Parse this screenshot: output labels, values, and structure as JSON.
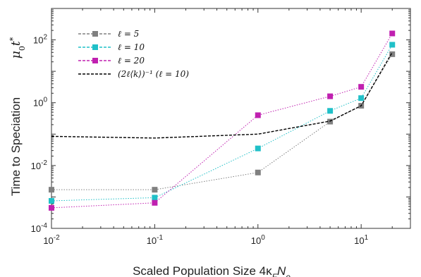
{
  "chart_data": {
    "type": "line",
    "title": "",
    "xlabel": "Scaled Population Size 4κ",
    "xlabel_sub_F": "F",
    "xlabel_N": "N",
    "xlabel_sub_e": "e",
    "ylabel": "Time to Speciation",
    "ylabel_math": "μ",
    "ylabel_math_sub": "0",
    "ylabel_math_t": "t",
    "ylabel_math_sup": "*",
    "xscale": "log",
    "yscale": "log",
    "xlim": [
      0.01,
      30
    ],
    "ylim": [
      0.0001,
      1000
    ],
    "x_ticks": [
      {
        "base": "10",
        "exp": "-2",
        "value": 0.01
      },
      {
        "base": "10",
        "exp": "-1",
        "value": 0.1
      },
      {
        "base": "10",
        "exp": "0",
        "value": 1
      },
      {
        "base": "10",
        "exp": "1",
        "value": 10
      }
    ],
    "y_ticks": [
      {
        "base": "10",
        "exp": "-4",
        "value": 0.0001
      },
      {
        "base": "10",
        "exp": "-2",
        "value": 0.01
      },
      {
        "base": "10",
        "exp": "0",
        "value": 1
      },
      {
        "base": "10",
        "exp": "2",
        "value": 100
      }
    ],
    "grid": false,
    "legend_position": "top-left",
    "series": [
      {
        "name": "ℓ = 5",
        "color": "#808080",
        "marker": "square",
        "x": [
          0.01,
          0.1,
          1,
          5,
          10,
          20
        ],
        "y": [
          0.0017,
          0.0017,
          0.006,
          0.25,
          0.8,
          35
        ]
      },
      {
        "name": "ℓ = 10",
        "color": "#20c0c8",
        "marker": "square",
        "x": [
          0.01,
          0.1,
          1,
          5,
          10,
          20
        ],
        "y": [
          0.00075,
          0.00095,
          0.035,
          0.55,
          1.4,
          70
        ]
      },
      {
        "name": "ℓ = 20",
        "color": "#c020b0",
        "marker": "square",
        "x": [
          0.01,
          0.1,
          1,
          5,
          10,
          20
        ],
        "y": [
          0.00045,
          0.00065,
          0.4,
          1.6,
          3.2,
          160
        ]
      },
      {
        "name": "(2ℓ⟨k⟩)⁻¹ (ℓ = 10)",
        "color": "#000000",
        "marker": "none",
        "x": [
          0.01,
          0.1,
          1,
          5,
          10,
          20
        ],
        "y": [
          0.085,
          0.075,
          0.1,
          0.26,
          0.8,
          40
        ]
      }
    ]
  }
}
